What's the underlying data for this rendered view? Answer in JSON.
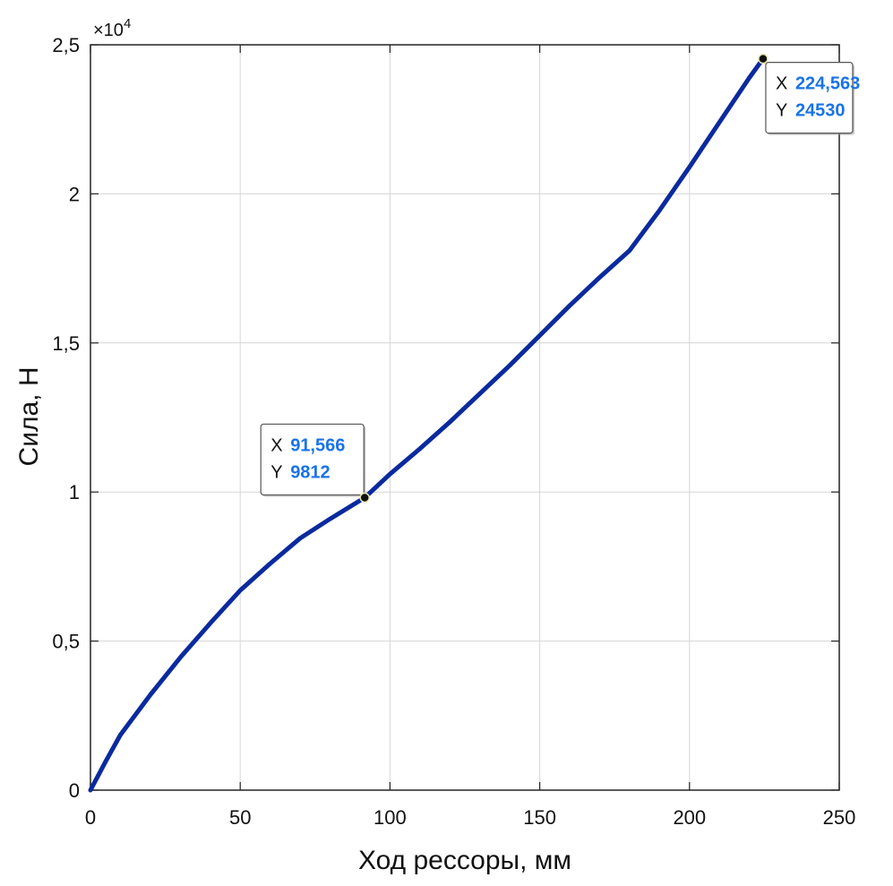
{
  "chart_data": {
    "type": "line",
    "xlabel": "Ход рессоры, мм",
    "ylabel": "Сила, Н",
    "xlim": [
      0,
      250
    ],
    "ylim": [
      0,
      25000
    ],
    "x_ticks": [
      0,
      50,
      100,
      150,
      200,
      250
    ],
    "x_tick_labels": [
      "0",
      "50",
      "100",
      "150",
      "200",
      "250"
    ],
    "y_ticks": [
      0,
      5000,
      10000,
      15000,
      20000,
      25000
    ],
    "y_tick_labels": [
      "0",
      "0,5",
      "1",
      "1,5",
      "2",
      "2,5"
    ],
    "y_exponent_label": "×10",
    "y_exponent_power": "4",
    "grid": true,
    "line_color": "#0a2a9e",
    "datatip_value_color": "#1a73e8",
    "series": [
      {
        "x": [
          0,
          5,
          10,
          20,
          30,
          40,
          50,
          60,
          70,
          80,
          91.566,
          100,
          110,
          120,
          130,
          140,
          150,
          160,
          170,
          180,
          190,
          200,
          210,
          220,
          224.563
        ],
        "y": [
          0,
          950,
          1850,
          3200,
          4450,
          5600,
          6700,
          7600,
          8450,
          9100,
          9812,
          10600,
          11450,
          12350,
          13300,
          14250,
          15250,
          16250,
          17200,
          18100,
          19450,
          20900,
          22400,
          23900,
          24530
        ]
      }
    ],
    "datatips": [
      {
        "x_key": "X",
        "x_val": "91,566",
        "y_key": "Y",
        "y_val": "9812",
        "x": 91.566,
        "y": 9812
      },
      {
        "x_key": "X",
        "x_val": "224,563",
        "y_key": "Y",
        "y_val": "24530",
        "x": 224.563,
        "y": 24530
      }
    ]
  }
}
